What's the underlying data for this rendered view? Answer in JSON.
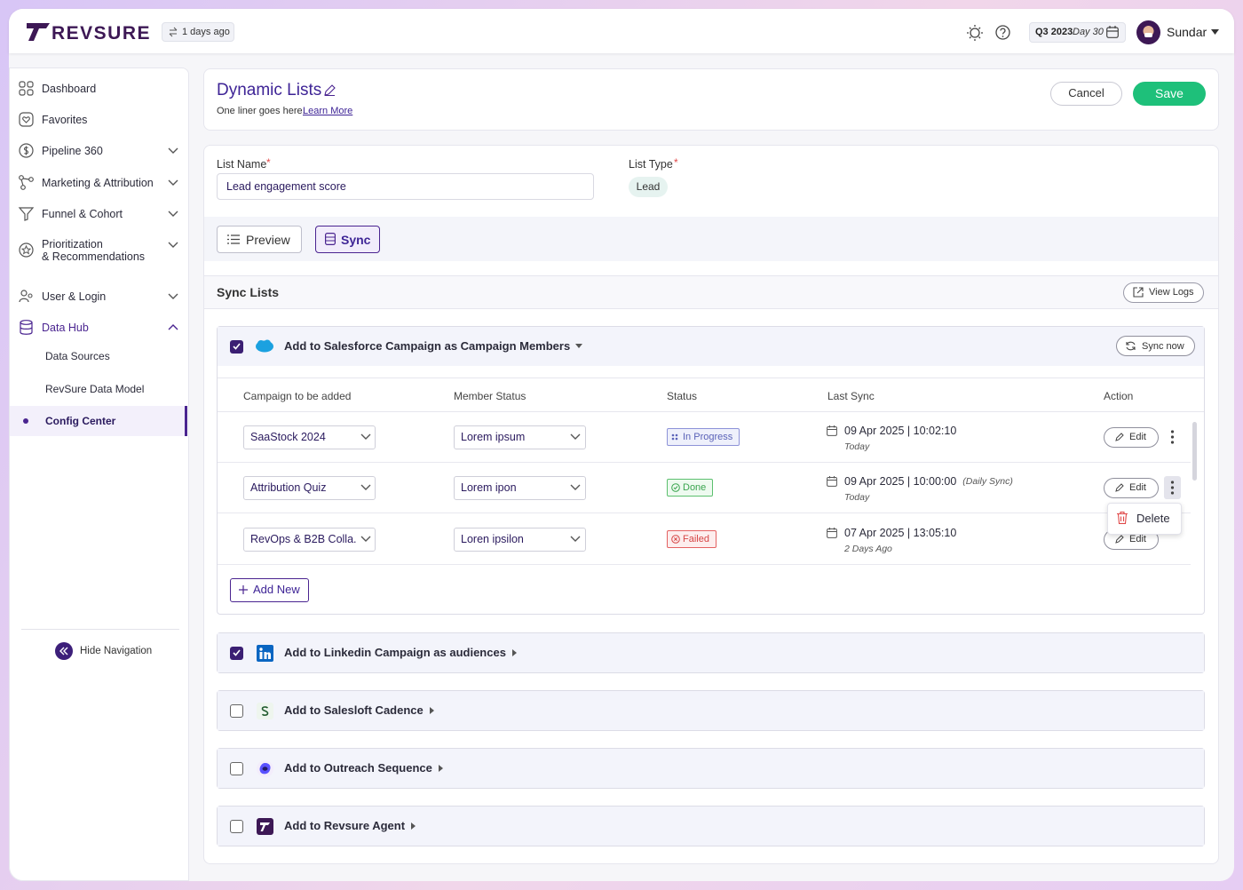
{
  "header": {
    "brand": "REVSURE",
    "last_updated": "1 days ago",
    "period": "Q3 2023",
    "day": "Day 30",
    "user": "Sundar"
  },
  "nav": {
    "items": [
      "Dashboard",
      "Favorites",
      "Pipeline 360",
      "Marketing & Attribution",
      "Funnel & Cohort",
      "Prioritization\n& Recommendations",
      "User & Login",
      "Data Hub"
    ],
    "sub_items": [
      "Data Sources",
      "RevSure Data Model",
      "Config Center"
    ],
    "hide": "Hide Navigation"
  },
  "page": {
    "title": "Dynamic Lists",
    "subtitle": "One liner goes here.",
    "learn_more": "Learn More",
    "cancel": "Cancel",
    "save": "Save"
  },
  "form": {
    "list_name_label": "List Name",
    "required_mark": "*",
    "list_name": "Lead engagement score",
    "list_type_label": "List Type",
    "list_type": "Lead"
  },
  "tabs": [
    "Preview",
    "Sync"
  ],
  "sync": {
    "title": "Sync Lists",
    "view_logs": "View Logs",
    "sync_now": "Sync now",
    "integrations": [
      {
        "label": "Add to Salesforce Campaign as Campaign Members",
        "checked": true,
        "expanded": true
      },
      {
        "label": "Add to Linkedin Campaign as audiences",
        "checked": true,
        "expanded": false
      },
      {
        "label": "Add to Salesloft Cadence",
        "checked": false,
        "expanded": false
      },
      {
        "label": "Add to Outreach Sequence",
        "checked": false,
        "expanded": false
      },
      {
        "label": "Add to Revsure Agent",
        "checked": false,
        "expanded": false
      }
    ],
    "columns": [
      "Campaign to be added",
      "Member Status",
      "Status",
      "Last Sync",
      "Action"
    ],
    "rows": [
      {
        "campaign": "SaaStock 2024",
        "member_status": "Lorem ipsum",
        "status": "In Progress",
        "last_sync": "09 Apr 2025 | 10:02:10",
        "relative": "Today"
      },
      {
        "campaign": "Attribution Quiz",
        "member_status": "Lorem ipon",
        "status": "Done",
        "last_sync": "09 Apr 2025 | 10:00:00",
        "note": "(Daily Sync)",
        "relative": "Today"
      },
      {
        "campaign": "RevOps & B2B Colla...",
        "member_status": "Loren ipsilon",
        "status": "Failed",
        "last_sync": "07 Apr 2025 | 13:05:10",
        "relative": "2 Days Ago"
      }
    ],
    "edit": "Edit",
    "delete": "Delete",
    "add_new": "Add New"
  }
}
